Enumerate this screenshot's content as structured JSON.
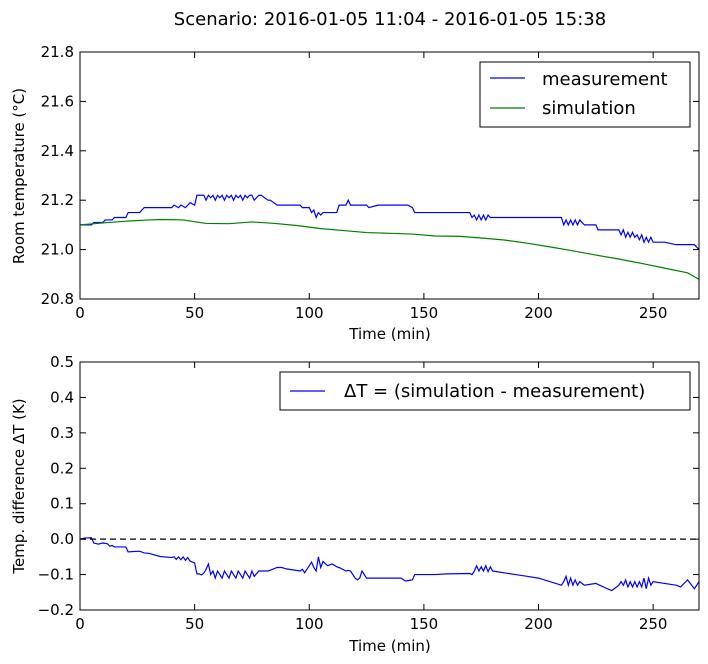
{
  "figure_title": "Scenario: 2016-01-05 11:04 - 2016-01-05 15:38",
  "chart_data": [
    {
      "type": "line",
      "xlabel": "Time (min)",
      "ylabel": "Room temperature (°C)",
      "xlim": [
        0,
        270
      ],
      "ylim": [
        20.8,
        21.8
      ],
      "xticks": [
        "0",
        "50",
        "100",
        "150",
        "200",
        "250"
      ],
      "yticks": [
        "20.8",
        "21.0",
        "21.2",
        "21.4",
        "21.6",
        "21.8"
      ],
      "grid": false,
      "legend_position": "top-right",
      "series": [
        {
          "name": "measurement",
          "color": "#0000ff",
          "x": [
            0,
            5,
            6,
            10,
            11,
            14,
            15,
            20,
            21,
            26,
            28,
            30,
            40,
            41,
            43,
            44,
            46,
            47,
            48,
            50,
            51,
            54,
            55,
            56,
            57,
            58,
            59,
            60,
            61,
            62,
            63,
            64,
            65,
            66,
            67,
            68,
            69,
            70,
            71,
            72,
            73,
            74,
            75,
            76,
            78,
            79,
            82,
            83,
            86,
            88,
            90,
            96,
            97,
            100,
            101,
            102,
            103,
            104,
            105,
            106,
            108,
            110,
            112,
            113,
            116,
            117,
            118,
            120,
            122,
            125,
            126,
            130,
            135,
            140,
            143,
            145,
            146,
            150,
            155,
            160,
            170,
            171,
            172,
            173,
            174,
            175,
            176,
            177,
            178,
            179,
            180,
            182,
            190,
            195,
            200,
            210,
            211,
            212,
            213,
            214,
            215,
            216,
            217,
            218,
            220,
            225,
            226,
            230,
            235,
            236,
            237,
            238,
            239,
            240,
            241,
            242,
            243,
            244,
            245,
            246,
            247,
            248,
            249,
            250,
            255,
            260,
            262,
            265,
            268,
            270
          ],
          "y": [
            21.1,
            21.1,
            21.11,
            21.11,
            21.12,
            21.12,
            21.13,
            21.13,
            21.15,
            21.15,
            21.17,
            21.17,
            21.17,
            21.18,
            21.17,
            21.18,
            21.17,
            21.18,
            21.19,
            21.18,
            21.22,
            21.22,
            21.2,
            21.22,
            21.21,
            21.22,
            21.2,
            21.22,
            21.21,
            21.22,
            21.2,
            21.22,
            21.21,
            21.22,
            21.2,
            21.22,
            21.21,
            21.22,
            21.2,
            21.22,
            21.21,
            21.22,
            21.22,
            21.2,
            21.22,
            21.22,
            21.2,
            21.2,
            21.18,
            21.18,
            21.18,
            21.18,
            21.17,
            21.17,
            21.15,
            21.16,
            21.13,
            21.15,
            21.14,
            21.15,
            21.15,
            21.15,
            21.15,
            21.18,
            21.18,
            21.2,
            21.18,
            21.18,
            21.18,
            21.18,
            21.17,
            21.18,
            21.18,
            21.18,
            21.18,
            21.17,
            21.15,
            21.15,
            21.15,
            21.15,
            21.15,
            21.13,
            21.14,
            21.12,
            21.14,
            21.12,
            21.14,
            21.12,
            21.14,
            21.13,
            21.13,
            21.13,
            21.13,
            21.13,
            21.13,
            21.13,
            21.1,
            21.12,
            21.1,
            21.12,
            21.1,
            21.12,
            21.1,
            21.12,
            21.1,
            21.1,
            21.08,
            21.08,
            21.08,
            21.06,
            21.08,
            21.05,
            21.07,
            21.05,
            21.07,
            21.05,
            21.06,
            21.04,
            21.06,
            21.03,
            21.05,
            21.03,
            21.05,
            21.03,
            21.03,
            21.02,
            21.02,
            21.02,
            21.02,
            21.0
          ]
        },
        {
          "name": "simulation",
          "color": "#008000",
          "x": [
            0,
            10,
            20,
            30,
            35,
            45,
            55,
            65,
            75,
            85,
            95,
            105,
            115,
            125,
            135,
            145,
            155,
            165,
            175,
            185,
            195,
            205,
            215,
            225,
            235,
            245,
            255,
            265,
            270
          ],
          "y": [
            21.1,
            21.108,
            21.115,
            21.12,
            21.122,
            21.12,
            21.106,
            21.105,
            21.112,
            21.106,
            21.097,
            21.085,
            21.077,
            21.069,
            21.066,
            21.063,
            21.055,
            21.054,
            21.047,
            21.039,
            21.026,
            21.011,
            20.995,
            20.978,
            20.962,
            20.944,
            20.925,
            20.906,
            20.88
          ]
        }
      ]
    },
    {
      "type": "line",
      "xlabel": "Time (min)",
      "ylabel": "Temp. difference ΔT (K)",
      "xlim": [
        0,
        270
      ],
      "ylim": [
        -0.2,
        0.5
      ],
      "xticks": [
        "0",
        "50",
        "100",
        "150",
        "200",
        "250"
      ],
      "yticks": [
        "−0.2",
        "−0.1",
        "0.0",
        "0.1",
        "0.2",
        "0.3",
        "0.4",
        "0.5"
      ],
      "grid": false,
      "legend_position": "top-right",
      "reference_line": {
        "y": 0.0,
        "style": "dashed",
        "color": "#000000"
      },
      "series": [
        {
          "name": "ΔT = (simulation - measurement)",
          "color": "#0000ff",
          "x": [
            0,
            2,
            5,
            6,
            8,
            10,
            12,
            13,
            14,
            15,
            20,
            21,
            26,
            28,
            30,
            35,
            40,
            41,
            42,
            43,
            44,
            45,
            46,
            47,
            48,
            50,
            51,
            52,
            53,
            54,
            55,
            56,
            57,
            58,
            59,
            60,
            61,
            62,
            63,
            64,
            65,
            66,
            67,
            68,
            69,
            70,
            71,
            72,
            73,
            74,
            75,
            76,
            78,
            79,
            82,
            84,
            86,
            88,
            90,
            96,
            97,
            98,
            100,
            101,
            102,
            103,
            104,
            105,
            106,
            108,
            110,
            112,
            113,
            116,
            117,
            118,
            120,
            121,
            122,
            123,
            125,
            130,
            135,
            140,
            142,
            145,
            146,
            150,
            155,
            160,
            170,
            171,
            172,
            173,
            174,
            175,
            176,
            177,
            178,
            179,
            180,
            185,
            190,
            195,
            200,
            210,
            211,
            212,
            213,
            214,
            215,
            216,
            217,
            218,
            220,
            225,
            230,
            232,
            235,
            236,
            237,
            238,
            239,
            240,
            241,
            242,
            243,
            244,
            245,
            246,
            247,
            248,
            249,
            250,
            255,
            260,
            262,
            265,
            268,
            270
          ],
          "y": [
            0.0,
            0.003,
            0.004,
            -0.011,
            -0.014,
            -0.011,
            -0.013,
            -0.02,
            -0.018,
            -0.022,
            -0.022,
            -0.036,
            -0.034,
            -0.039,
            -0.04,
            -0.049,
            -0.052,
            -0.05,
            -0.057,
            -0.05,
            -0.058,
            -0.05,
            -0.06,
            -0.052,
            -0.062,
            -0.067,
            -0.098,
            -0.098,
            -0.101,
            -0.096,
            -0.085,
            -0.07,
            -0.1,
            -0.09,
            -0.11,
            -0.09,
            -0.1,
            -0.11,
            -0.09,
            -0.1,
            -0.11,
            -0.09,
            -0.1,
            -0.11,
            -0.09,
            -0.1,
            -0.11,
            -0.09,
            -0.1,
            -0.11,
            -0.09,
            -0.105,
            -0.09,
            -0.09,
            -0.09,
            -0.085,
            -0.08,
            -0.08,
            -0.084,
            -0.09,
            -0.085,
            -0.095,
            -0.075,
            -0.065,
            -0.08,
            -0.09,
            -0.05,
            -0.08,
            -0.063,
            -0.075,
            -0.07,
            -0.078,
            -0.08,
            -0.09,
            -0.088,
            -0.09,
            -0.11,
            -0.115,
            -0.11,
            -0.09,
            -0.11,
            -0.11,
            -0.11,
            -0.11,
            -0.118,
            -0.115,
            -0.1,
            -0.1,
            -0.1,
            -0.098,
            -0.097,
            -0.1,
            -0.09,
            -0.075,
            -0.09,
            -0.078,
            -0.09,
            -0.075,
            -0.092,
            -0.078,
            -0.09,
            -0.095,
            -0.1,
            -0.105,
            -0.11,
            -0.13,
            -0.12,
            -0.105,
            -0.13,
            -0.11,
            -0.13,
            -0.115,
            -0.13,
            -0.12,
            -0.13,
            -0.125,
            -0.14,
            -0.145,
            -0.13,
            -0.12,
            -0.13,
            -0.115,
            -0.135,
            -0.12,
            -0.135,
            -0.12,
            -0.135,
            -0.12,
            -0.135,
            -0.11,
            -0.14,
            -0.11,
            -0.13,
            -0.12,
            -0.125,
            -0.13,
            -0.135,
            -0.115,
            -0.14,
            -0.12
          ]
        }
      ]
    }
  ]
}
